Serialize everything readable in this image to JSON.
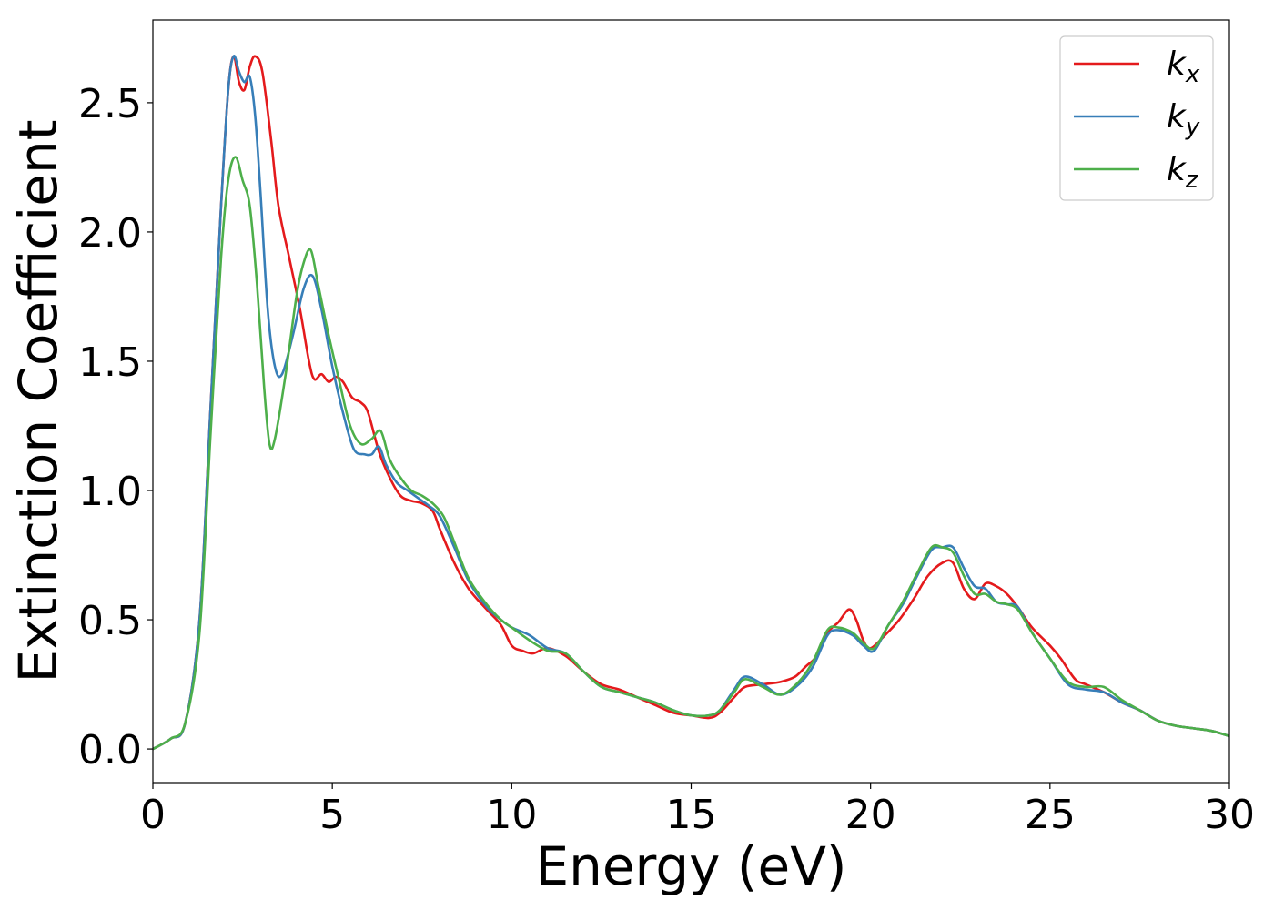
{
  "chart_data": {
    "type": "line",
    "title": "",
    "xlabel": "Energy (eV)",
    "ylabel": "Extinction Coefficient",
    "xlim": [
      0,
      30
    ],
    "ylim": [
      -0.13,
      2.82
    ],
    "xticks": [
      0,
      5,
      10,
      15,
      20,
      25,
      30
    ],
    "xtick_labels": [
      "0",
      "5",
      "10",
      "15",
      "20",
      "25",
      "30"
    ],
    "yticks": [
      0.0,
      0.5,
      1.0,
      1.5,
      2.0,
      2.5
    ],
    "ytick_labels": [
      "0.0",
      "0.5",
      "1.0",
      "1.5",
      "2.0",
      "2.5"
    ],
    "grid": false,
    "legend_position": "top-right",
    "series": [
      {
        "name": "k",
        "subscript": "x",
        "color": "#e41a1c",
        "points": [
          [
            0,
            0.0
          ],
          [
            0.5,
            0.04
          ],
          [
            0.9,
            0.1
          ],
          [
            1.3,
            0.5
          ],
          [
            1.6,
            1.3
          ],
          [
            1.9,
            2.1
          ],
          [
            2.1,
            2.55
          ],
          [
            2.25,
            2.68
          ],
          [
            2.4,
            2.58
          ],
          [
            2.55,
            2.55
          ],
          [
            2.7,
            2.64
          ],
          [
            2.85,
            2.68
          ],
          [
            3.05,
            2.62
          ],
          [
            3.3,
            2.35
          ],
          [
            3.5,
            2.1
          ],
          [
            3.8,
            1.9
          ],
          [
            4.1,
            1.7
          ],
          [
            4.35,
            1.5
          ],
          [
            4.5,
            1.43
          ],
          [
            4.7,
            1.45
          ],
          [
            4.9,
            1.42
          ],
          [
            5.1,
            1.44
          ],
          [
            5.3,
            1.42
          ],
          [
            5.55,
            1.36
          ],
          [
            5.8,
            1.34
          ],
          [
            6.0,
            1.3
          ],
          [
            6.3,
            1.15
          ],
          [
            6.6,
            1.05
          ],
          [
            6.9,
            0.98
          ],
          [
            7.2,
            0.96
          ],
          [
            7.5,
            0.95
          ],
          [
            7.8,
            0.92
          ],
          [
            8.0,
            0.85
          ],
          [
            8.4,
            0.72
          ],
          [
            8.8,
            0.62
          ],
          [
            9.3,
            0.54
          ],
          [
            9.7,
            0.48
          ],
          [
            10.0,
            0.4
          ],
          [
            10.3,
            0.38
          ],
          [
            10.6,
            0.37
          ],
          [
            11.0,
            0.39
          ],
          [
            11.5,
            0.36
          ],
          [
            12.0,
            0.3
          ],
          [
            12.5,
            0.25
          ],
          [
            13.0,
            0.23
          ],
          [
            13.5,
            0.2
          ],
          [
            14.0,
            0.17
          ],
          [
            14.5,
            0.14
          ],
          [
            15.0,
            0.13
          ],
          [
            15.5,
            0.12
          ],
          [
            15.8,
            0.14
          ],
          [
            16.2,
            0.2
          ],
          [
            16.5,
            0.24
          ],
          [
            17.0,
            0.25
          ],
          [
            17.5,
            0.26
          ],
          [
            17.9,
            0.28
          ],
          [
            18.2,
            0.32
          ],
          [
            18.5,
            0.36
          ],
          [
            18.8,
            0.45
          ],
          [
            19.1,
            0.49
          ],
          [
            19.4,
            0.54
          ],
          [
            19.6,
            0.5
          ],
          [
            19.8,
            0.42
          ],
          [
            20.0,
            0.39
          ],
          [
            20.4,
            0.44
          ],
          [
            20.8,
            0.5
          ],
          [
            21.2,
            0.58
          ],
          [
            21.6,
            0.67
          ],
          [
            22.0,
            0.72
          ],
          [
            22.3,
            0.72
          ],
          [
            22.6,
            0.62
          ],
          [
            22.9,
            0.58
          ],
          [
            23.2,
            0.64
          ],
          [
            23.5,
            0.63
          ],
          [
            23.8,
            0.6
          ],
          [
            24.1,
            0.55
          ],
          [
            24.5,
            0.47
          ],
          [
            25.0,
            0.4
          ],
          [
            25.3,
            0.35
          ],
          [
            25.7,
            0.27
          ],
          [
            26.0,
            0.25
          ],
          [
            26.5,
            0.22
          ],
          [
            27.0,
            0.18
          ],
          [
            27.5,
            0.15
          ],
          [
            28.0,
            0.11
          ],
          [
            28.5,
            0.09
          ],
          [
            29.0,
            0.08
          ],
          [
            29.5,
            0.07
          ],
          [
            30.0,
            0.05
          ]
        ]
      },
      {
        "name": "k",
        "subscript": "y",
        "color": "#377eb8",
        "points": [
          [
            0,
            0.0
          ],
          [
            0.5,
            0.04
          ],
          [
            0.9,
            0.1
          ],
          [
            1.3,
            0.5
          ],
          [
            1.6,
            1.3
          ],
          [
            1.9,
            2.1
          ],
          [
            2.1,
            2.55
          ],
          [
            2.25,
            2.68
          ],
          [
            2.4,
            2.62
          ],
          [
            2.55,
            2.58
          ],
          [
            2.7,
            2.6
          ],
          [
            2.85,
            2.45
          ],
          [
            3.0,
            2.15
          ],
          [
            3.2,
            1.7
          ],
          [
            3.4,
            1.48
          ],
          [
            3.6,
            1.45
          ],
          [
            3.9,
            1.6
          ],
          [
            4.2,
            1.78
          ],
          [
            4.45,
            1.83
          ],
          [
            4.7,
            1.7
          ],
          [
            5.0,
            1.48
          ],
          [
            5.3,
            1.3
          ],
          [
            5.6,
            1.16
          ],
          [
            5.9,
            1.14
          ],
          [
            6.1,
            1.14
          ],
          [
            6.3,
            1.17
          ],
          [
            6.5,
            1.1
          ],
          [
            6.8,
            1.03
          ],
          [
            7.1,
            1.0
          ],
          [
            7.4,
            0.97
          ],
          [
            7.7,
            0.94
          ],
          [
            8.0,
            0.9
          ],
          [
            8.4,
            0.78
          ],
          [
            8.8,
            0.65
          ],
          [
            9.3,
            0.55
          ],
          [
            9.7,
            0.5
          ],
          [
            10.0,
            0.47
          ],
          [
            10.5,
            0.44
          ],
          [
            11.0,
            0.39
          ],
          [
            11.5,
            0.37
          ],
          [
            12.0,
            0.3
          ],
          [
            12.5,
            0.24
          ],
          [
            13.0,
            0.22
          ],
          [
            13.5,
            0.2
          ],
          [
            14.0,
            0.18
          ],
          [
            14.5,
            0.15
          ],
          [
            15.0,
            0.13
          ],
          [
            15.5,
            0.13
          ],
          [
            15.8,
            0.15
          ],
          [
            16.2,
            0.23
          ],
          [
            16.5,
            0.28
          ],
          [
            17.0,
            0.25
          ],
          [
            17.5,
            0.21
          ],
          [
            18.0,
            0.25
          ],
          [
            18.4,
            0.32
          ],
          [
            18.8,
            0.44
          ],
          [
            19.1,
            0.46
          ],
          [
            19.5,
            0.44
          ],
          [
            19.8,
            0.4
          ],
          [
            20.1,
            0.38
          ],
          [
            20.5,
            0.48
          ],
          [
            20.9,
            0.56
          ],
          [
            21.3,
            0.67
          ],
          [
            21.7,
            0.77
          ],
          [
            22.0,
            0.78
          ],
          [
            22.3,
            0.78
          ],
          [
            22.6,
            0.7
          ],
          [
            22.9,
            0.63
          ],
          [
            23.2,
            0.62
          ],
          [
            23.5,
            0.57
          ],
          [
            23.8,
            0.56
          ],
          [
            24.1,
            0.55
          ],
          [
            24.5,
            0.45
          ],
          [
            25.0,
            0.35
          ],
          [
            25.5,
            0.25
          ],
          [
            26.0,
            0.23
          ],
          [
            26.5,
            0.22
          ],
          [
            27.0,
            0.18
          ],
          [
            27.5,
            0.15
          ],
          [
            28.0,
            0.11
          ],
          [
            28.5,
            0.09
          ],
          [
            29.0,
            0.08
          ],
          [
            29.5,
            0.07
          ],
          [
            30.0,
            0.05
          ]
        ]
      },
      {
        "name": "k",
        "subscript": "z",
        "color": "#4daf4a",
        "points": [
          [
            0,
            0.0
          ],
          [
            0.5,
            0.04
          ],
          [
            0.9,
            0.1
          ],
          [
            1.3,
            0.45
          ],
          [
            1.6,
            1.2
          ],
          [
            1.9,
            1.9
          ],
          [
            2.1,
            2.2
          ],
          [
            2.3,
            2.29
          ],
          [
            2.5,
            2.2
          ],
          [
            2.7,
            2.1
          ],
          [
            2.9,
            1.8
          ],
          [
            3.1,
            1.4
          ],
          [
            3.25,
            1.18
          ],
          [
            3.4,
            1.2
          ],
          [
            3.7,
            1.45
          ],
          [
            4.0,
            1.75
          ],
          [
            4.2,
            1.88
          ],
          [
            4.4,
            1.93
          ],
          [
            4.6,
            1.8
          ],
          [
            4.9,
            1.6
          ],
          [
            5.2,
            1.42
          ],
          [
            5.5,
            1.25
          ],
          [
            5.8,
            1.18
          ],
          [
            6.1,
            1.2
          ],
          [
            6.35,
            1.23
          ],
          [
            6.6,
            1.12
          ],
          [
            6.9,
            1.05
          ],
          [
            7.2,
            1.0
          ],
          [
            7.5,
            0.98
          ],
          [
            7.8,
            0.95
          ],
          [
            8.1,
            0.9
          ],
          [
            8.4,
            0.8
          ],
          [
            8.8,
            0.66
          ],
          [
            9.3,
            0.56
          ],
          [
            9.7,
            0.5
          ],
          [
            10.0,
            0.47
          ],
          [
            10.5,
            0.42
          ],
          [
            11.0,
            0.38
          ],
          [
            11.5,
            0.37
          ],
          [
            12.0,
            0.3
          ],
          [
            12.5,
            0.24
          ],
          [
            13.0,
            0.22
          ],
          [
            13.5,
            0.2
          ],
          [
            14.0,
            0.18
          ],
          [
            14.5,
            0.15
          ],
          [
            15.0,
            0.13
          ],
          [
            15.5,
            0.13
          ],
          [
            15.8,
            0.15
          ],
          [
            16.2,
            0.22
          ],
          [
            16.5,
            0.27
          ],
          [
            17.0,
            0.24
          ],
          [
            17.5,
            0.21
          ],
          [
            18.0,
            0.26
          ],
          [
            18.4,
            0.34
          ],
          [
            18.8,
            0.46
          ],
          [
            19.1,
            0.47
          ],
          [
            19.5,
            0.45
          ],
          [
            19.8,
            0.41
          ],
          [
            20.1,
            0.39
          ],
          [
            20.5,
            0.48
          ],
          [
            20.9,
            0.57
          ],
          [
            21.3,
            0.68
          ],
          [
            21.7,
            0.78
          ],
          [
            22.0,
            0.78
          ],
          [
            22.3,
            0.76
          ],
          [
            22.6,
            0.67
          ],
          [
            22.9,
            0.6
          ],
          [
            23.2,
            0.6
          ],
          [
            23.5,
            0.57
          ],
          [
            23.8,
            0.56
          ],
          [
            24.1,
            0.54
          ],
          [
            24.5,
            0.45
          ],
          [
            25.0,
            0.35
          ],
          [
            25.5,
            0.26
          ],
          [
            26.0,
            0.24
          ],
          [
            26.5,
            0.24
          ],
          [
            27.0,
            0.19
          ],
          [
            27.5,
            0.15
          ],
          [
            28.0,
            0.11
          ],
          [
            28.5,
            0.09
          ],
          [
            29.0,
            0.08
          ],
          [
            29.5,
            0.07
          ],
          [
            30.0,
            0.05
          ]
        ]
      }
    ]
  }
}
